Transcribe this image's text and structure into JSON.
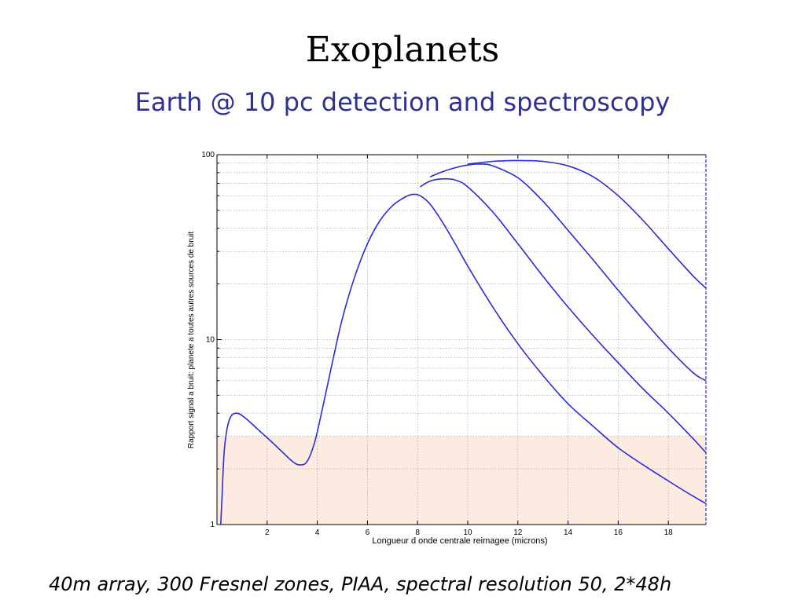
{
  "slide": {
    "title": "Exoplanets",
    "subtitle": "Earth @ 10 pc detection and spectroscopy",
    "caption": "40m array, 300 Fresnel zones, PIAA, spectral resolution 50, 2*48h"
  },
  "colors": {
    "curve": "#2b2bd8",
    "band_fill": "#fcebe1",
    "title": "#000000",
    "subtitle": "#2e3192"
  },
  "chart_data": {
    "type": "line",
    "title": "",
    "xlabel": "Longueur d onde centrale reimagee (microns)",
    "ylabel": "Rapport signal a bruit: planete a toutes autres sources de bruit",
    "xlim": [
      0,
      19.5
    ],
    "ylim": [
      1,
      100
    ],
    "yscale": "log",
    "grid": true,
    "x_ticks": [
      "2",
      "4",
      "6",
      "8",
      "10",
      "12",
      "14",
      "16",
      "18"
    ],
    "y_ticks": [
      "1",
      "10",
      "100"
    ],
    "shaded_band": {
      "y_from": 1,
      "y_to": 3.0
    },
    "series": [
      {
        "x": [
          0.15,
          0.2,
          0.3,
          0.5,
          0.8,
          1.2,
          1.6,
          2.0,
          2.5,
          3.0,
          3.3,
          3.6,
          3.9,
          4.2,
          4.6,
          5.0,
          5.5,
          6.0,
          6.5,
          7.0,
          7.5,
          7.8,
          8.1,
          8.5,
          9.0,
          9.5,
          10.0,
          11.0,
          12.0,
          13.0,
          14.0,
          15.0,
          16.0,
          17.0,
          18.0,
          19.0,
          19.5
        ],
        "y": [
          1.0,
          1.4,
          2.6,
          3.7,
          4.0,
          3.7,
          3.3,
          2.95,
          2.55,
          2.2,
          2.1,
          2.2,
          2.8,
          4.2,
          7.5,
          13.0,
          22.0,
          33.0,
          44.0,
          53.0,
          59.0,
          61.0,
          60.0,
          54.0,
          43.0,
          33.0,
          25.0,
          15.0,
          9.5,
          6.4,
          4.5,
          3.4,
          2.6,
          2.1,
          1.72,
          1.42,
          1.3
        ]
      },
      {
        "x": [
          8.1,
          8.5,
          9.0,
          9.5,
          10.0,
          11.0,
          12.0,
          13.0,
          14.0,
          15.0,
          16.0,
          17.0,
          18.0,
          19.0,
          19.5
        ],
        "y": [
          67.0,
          72.0,
          74.0,
          73.0,
          67.0,
          49.0,
          33.0,
          22.0,
          15.0,
          10.5,
          7.5,
          5.4,
          4.0,
          2.9,
          2.45
        ]
      },
      {
        "x": [
          8.5,
          9.0,
          9.5,
          10.0,
          10.5,
          11.0,
          12.0,
          13.0,
          14.0,
          15.0,
          16.0,
          17.0,
          18.0,
          19.0,
          19.5
        ],
        "y": [
          76.0,
          81.0,
          85.0,
          88.0,
          89.0,
          87.0,
          75.0,
          56.0,
          39.0,
          27.0,
          18.5,
          12.8,
          9.0,
          6.6,
          6.0
        ]
      },
      {
        "x": [
          10.0,
          11.0,
          12.0,
          13.0,
          14.0,
          15.0,
          16.0,
          17.0,
          18.0,
          19.0,
          19.5
        ],
        "y": [
          89.0,
          92.0,
          93.0,
          92.0,
          87.0,
          76.0,
          60.0,
          44.0,
          31.0,
          22.0,
          19.0
        ]
      }
    ]
  }
}
